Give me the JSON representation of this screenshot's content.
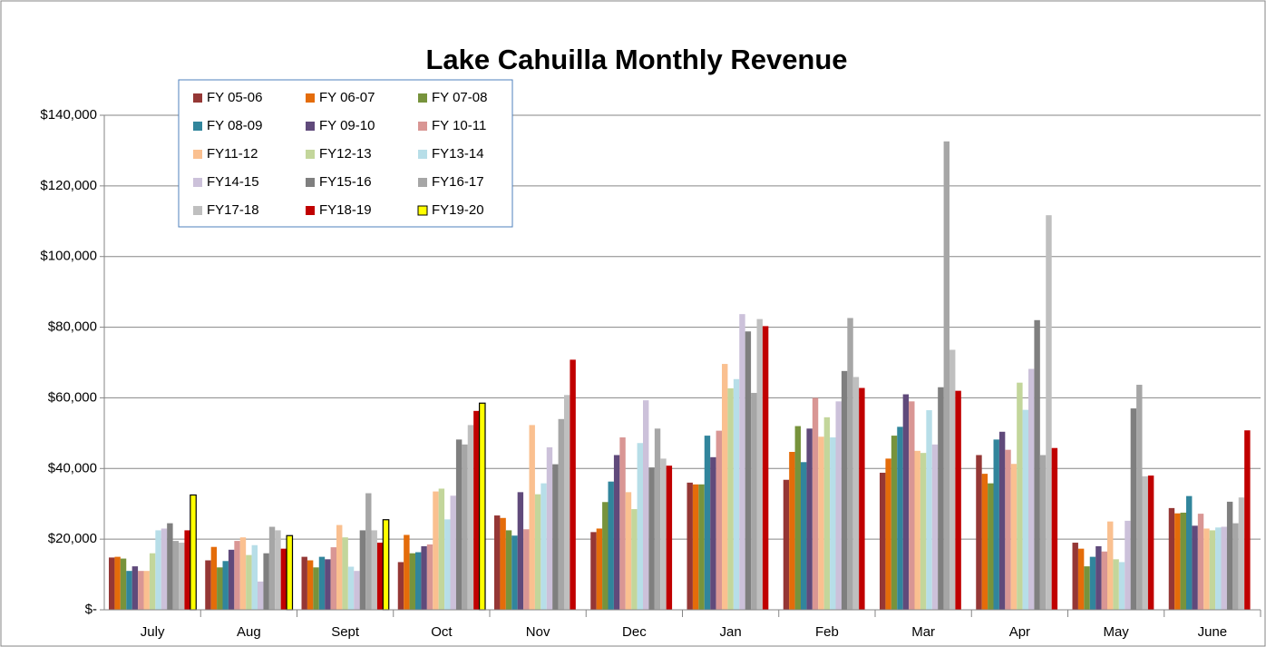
{
  "chart_data": {
    "type": "bar",
    "title": "Lake Cahuilla Monthly Revenue",
    "categories": [
      "July",
      "Aug",
      "Sept",
      "Oct",
      "Nov",
      "Dec",
      "Jan",
      "Feb",
      "Mar",
      "Apr",
      "May",
      "June"
    ],
    "ylim": [
      0,
      140000
    ],
    "yticks": [
      {
        "value": 0,
        "label": "$-"
      },
      {
        "value": 20000,
        "label": "$20,000"
      },
      {
        "value": 40000,
        "label": "$40,000"
      },
      {
        "value": 60000,
        "label": "$60,000"
      },
      {
        "value": 80000,
        "label": "$80,000"
      },
      {
        "value": 100000,
        "label": "$100,000"
      },
      {
        "value": 120000,
        "label": "$120,000"
      },
      {
        "value": 140000,
        "label": "$140,000"
      }
    ],
    "grid": true,
    "legend": "top-left",
    "series": [
      {
        "name": "FY 05-06",
        "color": "#953735",
        "values": [
          14800,
          14000,
          15000,
          13500,
          26700,
          22000,
          36000,
          36800,
          38800,
          43800,
          19000,
          28800
        ]
      },
      {
        "name": "FY 06-07",
        "color": "#e46c0a",
        "values": [
          15000,
          17800,
          14000,
          21200,
          26000,
          23000,
          35500,
          44700,
          42800,
          38500,
          17300,
          27300
        ]
      },
      {
        "name": "FY 07-08",
        "color": "#77933c",
        "values": [
          14500,
          12000,
          12000,
          16000,
          22500,
          30500,
          35500,
          52000,
          49300,
          35800,
          12300,
          27500
        ]
      },
      {
        "name": "FY 08-09",
        "color": "#31859c",
        "values": [
          11000,
          13800,
          15000,
          16300,
          21000,
          36300,
          49300,
          41800,
          51800,
          48200,
          15000,
          32200
        ]
      },
      {
        "name": "FY 09-10",
        "color": "#604a7b",
        "values": [
          12300,
          17000,
          14300,
          18000,
          33300,
          43800,
          43200,
          51300,
          61000,
          50400,
          18000,
          23800
        ]
      },
      {
        "name": "FY 10-11",
        "color": "#d99694",
        "values": [
          11000,
          19500,
          17700,
          18500,
          22800,
          48800,
          50700,
          60000,
          59000,
          45300,
          16500,
          27200
        ]
      },
      {
        "name": "FY11-12",
        "color": "#fac090",
        "values": [
          11000,
          20500,
          24000,
          33500,
          52300,
          33300,
          69600,
          49000,
          45000,
          41300,
          25000,
          23000
        ]
      },
      {
        "name": "FY12-13",
        "color": "#c3d69b",
        "values": [
          16000,
          15500,
          20500,
          34300,
          32700,
          28500,
          62700,
          54500,
          44400,
          64300,
          14300,
          22500
        ]
      },
      {
        "name": "FY13-14",
        "color": "#b7dee8",
        "values": [
          22500,
          18300,
          12200,
          25600,
          35800,
          47200,
          65300,
          48800,
          56500,
          56600,
          13500,
          23300
        ]
      },
      {
        "name": "FY14-15",
        "color": "#ccc1da",
        "values": [
          23000,
          8000,
          11000,
          32300,
          46000,
          59300,
          83700,
          59000,
          46800,
          68200,
          25200,
          23500
        ]
      },
      {
        "name": "FY15-16",
        "color": "#7f7f7f",
        "values": [
          24500,
          16000,
          22500,
          48200,
          41200,
          40300,
          78800,
          67600,
          63000,
          82000,
          57000,
          30600
        ]
      },
      {
        "name": "FY16-17",
        "color": "#a6a6a6",
        "values": [
          19500,
          23500,
          33000,
          46800,
          54000,
          51300,
          61400,
          82600,
          132600,
          43800,
          63700,
          24500
        ]
      },
      {
        "name": "FY17-18",
        "color": "#bfbfbf",
        "values": [
          19000,
          22500,
          22500,
          52300,
          60800,
          42800,
          82300,
          65900,
          73600,
          111700,
          37800,
          31800
        ]
      },
      {
        "name": "FY18-19",
        "color": "#c00000",
        "values": [
          22500,
          17300,
          19000,
          56300,
          70800,
          40800,
          80300,
          62800,
          62000,
          45800,
          38000,
          50800
        ]
      },
      {
        "name": "FY19-20",
        "color": "#ffff00",
        "values": [
          32500,
          21000,
          25500,
          58500,
          null,
          null,
          null,
          null,
          null,
          null,
          null,
          null
        ]
      }
    ]
  }
}
